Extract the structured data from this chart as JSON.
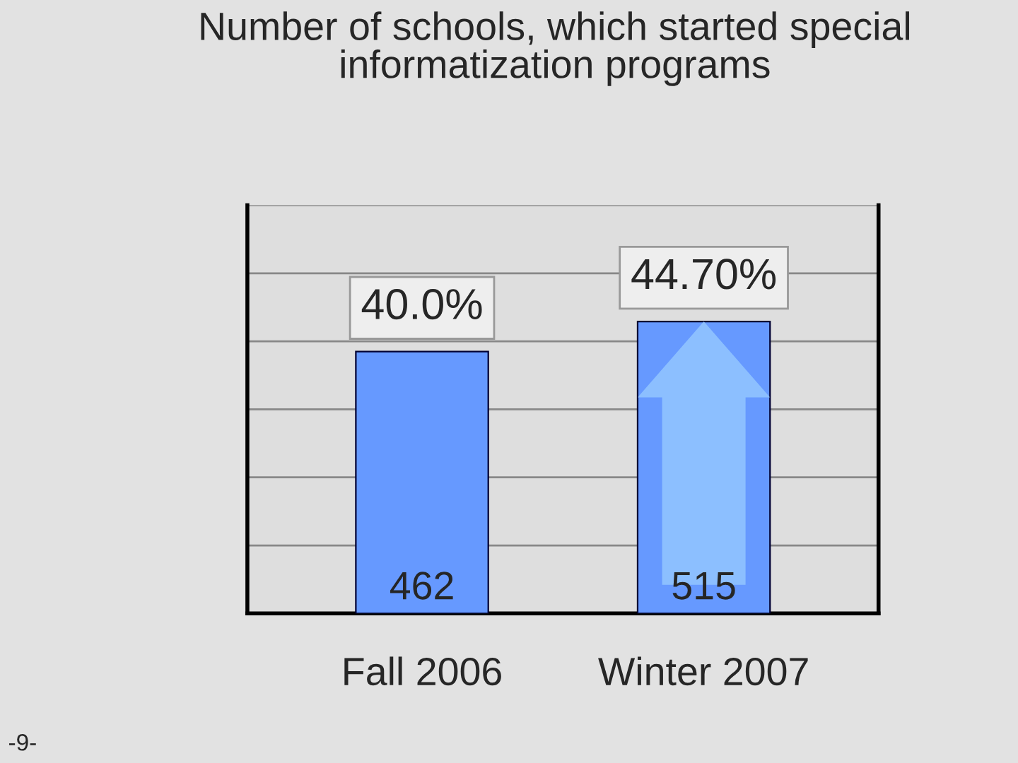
{
  "chart_data": {
    "type": "bar",
    "title": "Number of schools, which started special\ninformatization programs",
    "categories": [
      "Fall 2006",
      "Winter 2007"
    ],
    "values": [
      462,
      515
    ],
    "color": "#6699ff",
    "data_labels": true,
    "ylim": [
      0,
      720
    ],
    "yticks": [
      {
        "value": 0,
        "label": null
      },
      {
        "value": 120,
        "label": null
      },
      {
        "value": 240,
        "label": null
      },
      {
        "value": 360,
        "label": null
      },
      {
        "value": 480,
        "label": null
      },
      {
        "value": 600,
        "label": null
      },
      {
        "value": 720,
        "label": null
      }
    ],
    "grid": "y",
    "annotations": [
      {
        "text": "40.0%",
        "x": "Fall 2006",
        "y": 462
      },
      {
        "text": "44.70%",
        "x": "Winter 2007",
        "y": 515
      },
      "-9-"
    ]
  }
}
